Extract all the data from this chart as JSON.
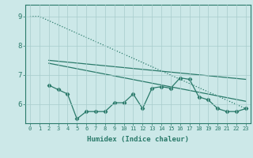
{
  "xlabel": "Humidex (Indice chaleur)",
  "background_color": "#cce8e8",
  "grid_color": "#a8cccc",
  "line_color": "#2a7a6a",
  "xlim": [
    -0.5,
    23.5
  ],
  "ylim": [
    5.35,
    9.4
  ],
  "yticks": [
    6,
    7,
    8,
    9
  ],
  "xticks": [
    0,
    1,
    2,
    3,
    4,
    5,
    6,
    7,
    8,
    9,
    10,
    11,
    12,
    13,
    14,
    15,
    16,
    17,
    18,
    19,
    20,
    21,
    22,
    23
  ],
  "line_dotted": {
    "x": [
      0,
      1,
      23
    ],
    "y": [
      9.0,
      9.0,
      5.85
    ],
    "linewidth": 0.9,
    "linestyle": ":"
  },
  "line_solid1": {
    "x": [
      2,
      23
    ],
    "y": [
      7.5,
      6.85
    ],
    "linewidth": 0.9,
    "linestyle": "-"
  },
  "line_solid2": {
    "x": [
      2,
      23
    ],
    "y": [
      7.4,
      6.1
    ],
    "linewidth": 0.9,
    "linestyle": "-"
  },
  "line_markers": {
    "x": [
      2,
      3,
      4,
      5,
      6,
      7,
      8,
      9,
      10,
      11,
      12,
      13,
      14,
      15,
      16,
      17,
      18,
      19,
      20,
      21,
      22,
      23
    ],
    "y": [
      6.65,
      6.5,
      6.35,
      5.5,
      5.75,
      5.75,
      5.75,
      6.05,
      6.05,
      6.35,
      5.85,
      6.55,
      6.6,
      6.55,
      6.9,
      6.85,
      6.25,
      6.15,
      5.85,
      5.75,
      5.75,
      5.85
    ],
    "linewidth": 0.9,
    "linestyle": "-",
    "marker": "D",
    "markersize": 2.2
  }
}
